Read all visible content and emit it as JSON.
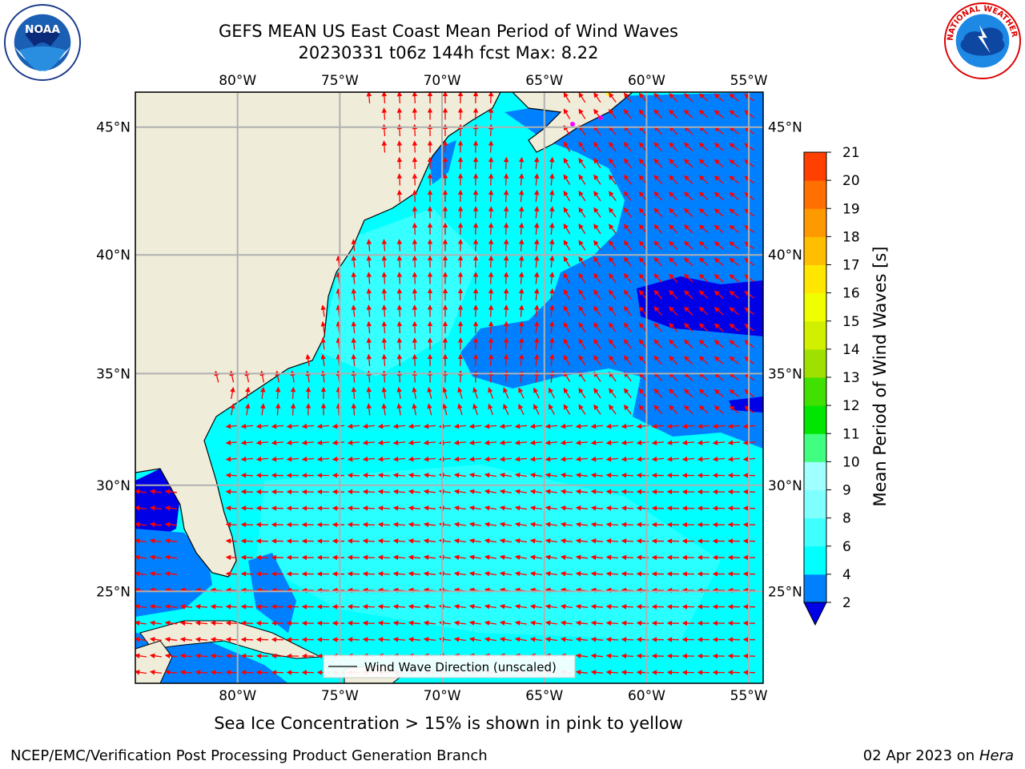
{
  "header": {
    "title_line1": "GEFS MEAN US East Coast Mean Period of Wind Waves",
    "title_line2": "20230331 t06z 144h fcst   Max: 8.22"
  },
  "logos": {
    "left": {
      "name": "noaa-logo",
      "text": "NOAA",
      "ring_text": "NATIONAL OCEANIC AND ATMOSPHERIC ADMINISTRATION · U.S. DEPARTMENT OF COMMERCE"
    },
    "right": {
      "name": "nws-logo",
      "ring_text": "NATIONAL WEATHER SERVICE"
    }
  },
  "map": {
    "lon_ticks_top": [
      "80°W",
      "75°W",
      "70°W",
      "65°W",
      "60°W",
      "55°W"
    ],
    "lon_ticks_bottom": [
      "80°W",
      "75°W",
      "70°W",
      "65°W",
      "60°W",
      "55°W"
    ],
    "lat_ticks_left": [
      "45°N",
      "40°N",
      "35°N",
      "30°N",
      "25°N"
    ],
    "lat_ticks_right": [
      "45°N",
      "40°N",
      "35°N",
      "30°N",
      "25°N"
    ],
    "lon_values": [
      -80,
      -75,
      -70,
      -65,
      -60,
      -55
    ],
    "lat_values": [
      45,
      40,
      35,
      30,
      25
    ],
    "extent": {
      "lon_min": -85,
      "lon_max": -54.3,
      "lat_min": 20.5,
      "lat_max": 46.3
    },
    "legend_label": "Wind Wave Direction (unscaled)",
    "colors": {
      "land": "#efedda",
      "ocean_light": "#00ffff",
      "ocean_mid": "#0080ff",
      "ocean_dark": "#0000e6",
      "ocean_pale": "#4dffff",
      "arrows": "#ff0000",
      "grid": "#b0b0b0"
    }
  },
  "colorbar": {
    "label": "Mean Period of Wind Waves [s]",
    "ticks": [
      "2",
      "4",
      "6",
      "8",
      "9",
      "10",
      "11",
      "12",
      "13",
      "14",
      "15",
      "16",
      "17",
      "18",
      "19",
      "20",
      "21"
    ],
    "colors": [
      "#0080ff",
      "#00ffff",
      "#40ffff",
      "#80ffff",
      "#a0ffff",
      "#40ff80",
      "#00e600",
      "#40e000",
      "#a0e000",
      "#d0f000",
      "#f0ff00",
      "#ffe600",
      "#ffbf00",
      "#ff9900",
      "#ff7000",
      "#ff4000",
      "#ff1a00",
      "#ff0000"
    ],
    "under_color": "#0000e6"
  },
  "caption": "Sea Ice Concentration > 15% is shown in pink to yellow",
  "footer": {
    "left": "NCEP/EMC/Verification Post Processing Product Generation Branch",
    "right_prefix": "02 Apr 2023 on ",
    "right_machine": "Hera"
  }
}
